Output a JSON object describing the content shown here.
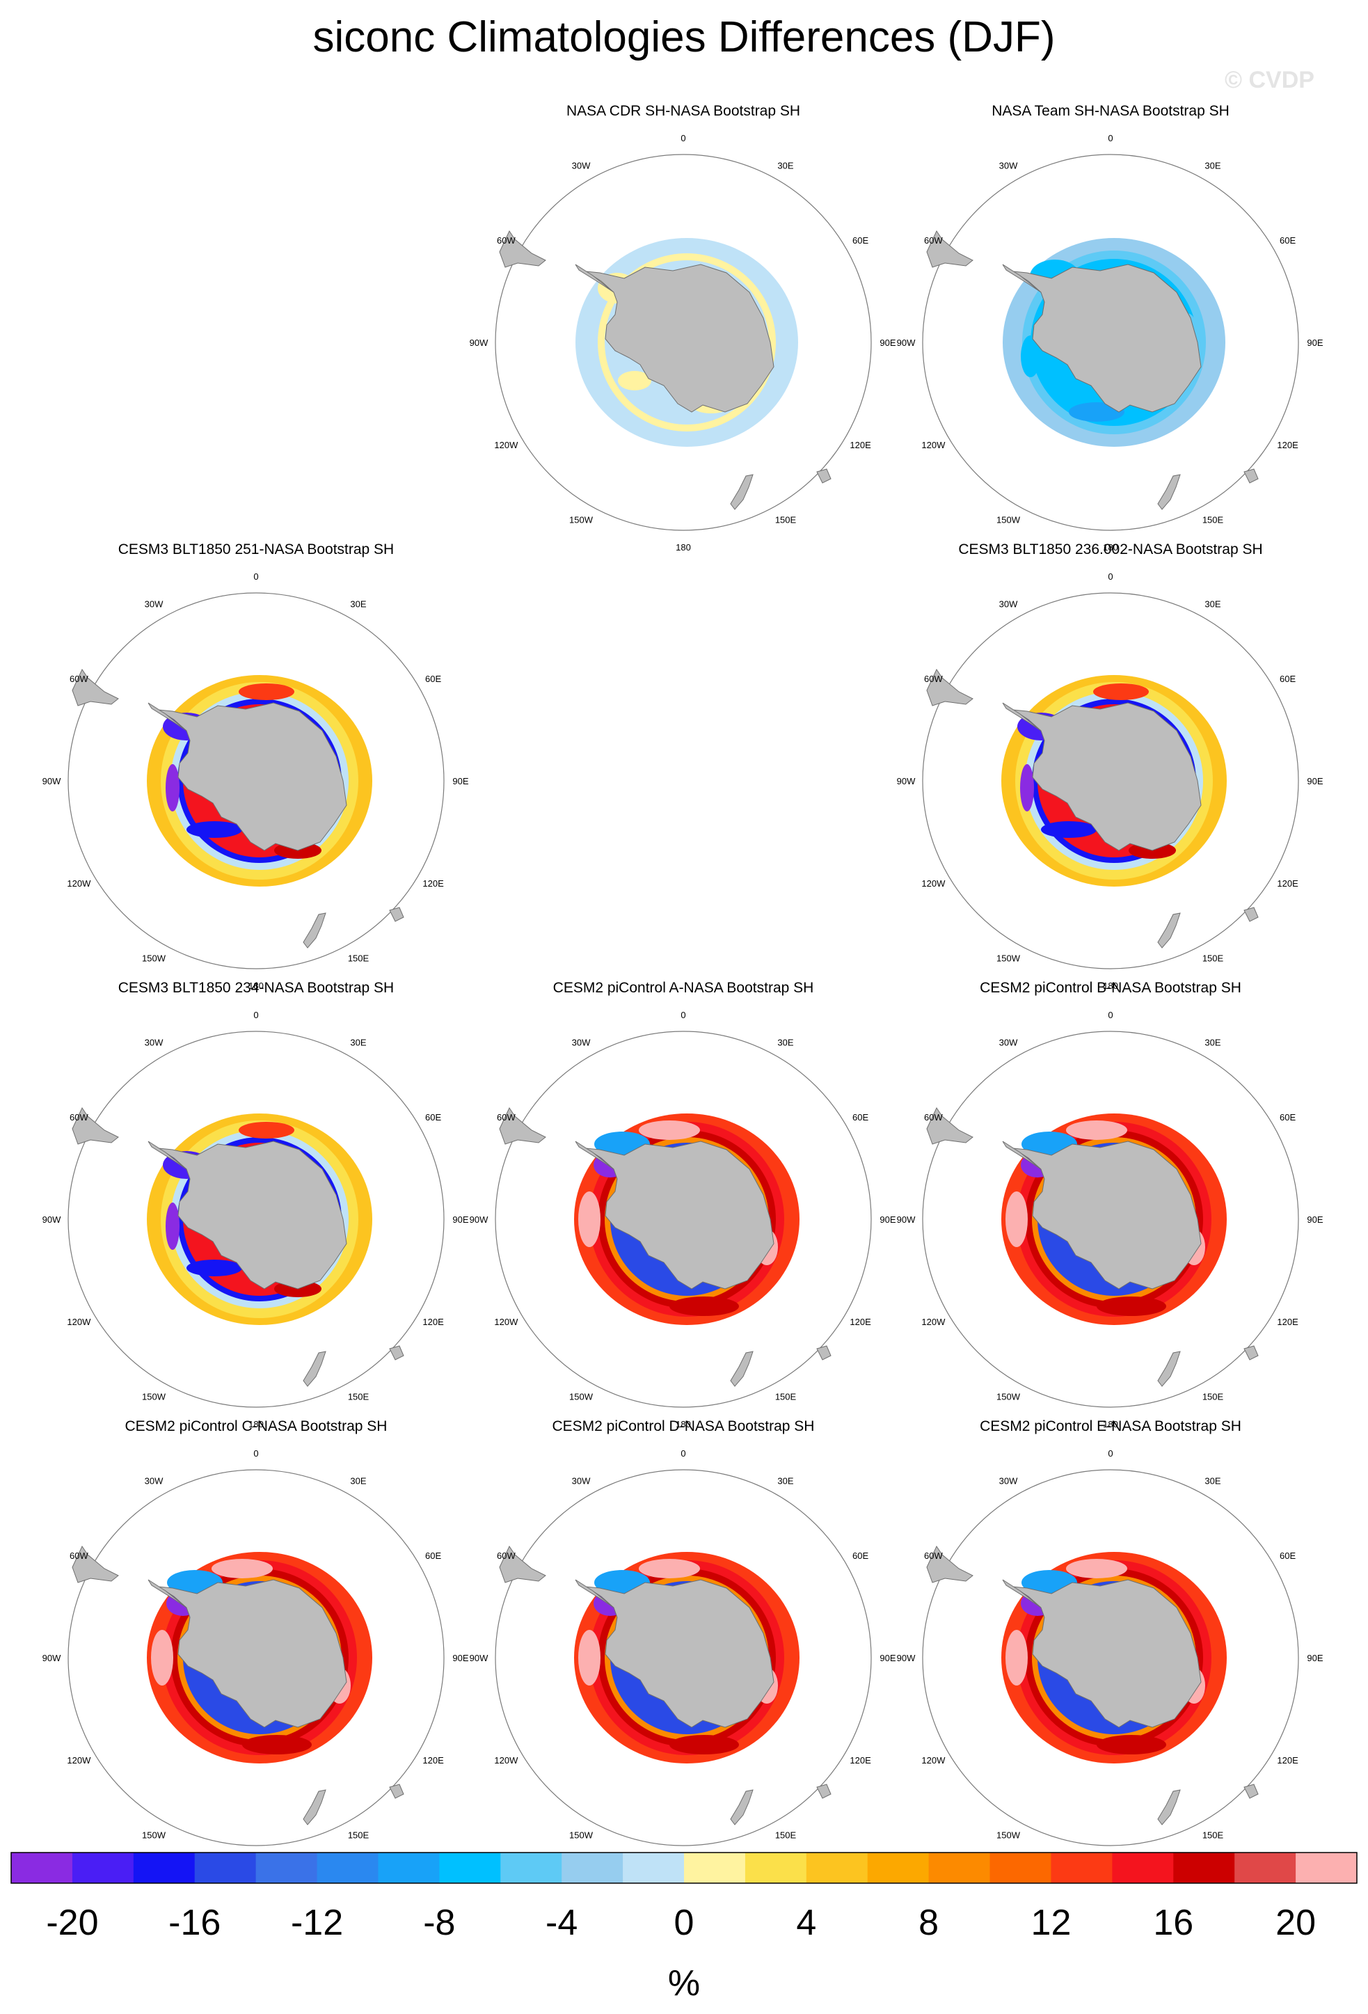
{
  "figure": {
    "title": "siconc Climatologies Differences (DJF)",
    "watermark": "© CVDP"
  },
  "map_labels": [
    "0",
    "30E",
    "60E",
    "90E",
    "120E",
    "150E",
    "180",
    "150W",
    "120W",
    "90W",
    "60W",
    "30W"
  ],
  "chart_data": {
    "type": "heatmap",
    "projection": "south-polar-stereographic",
    "panels": [
      {
        "title": "NASA CDR SH-NASA Bootstrap SH",
        "pattern": "cdr"
      },
      {
        "title": "NASA Team SH-NASA Bootstrap SH",
        "pattern": "team"
      },
      {
        "title": "CESM3 BLT1850 251-NASA Bootstrap SH",
        "pattern": "cesm3"
      },
      {
        "title": "CESM3 BLT1850 236.002-NASA Bootstrap SH",
        "pattern": "cesm3"
      },
      {
        "title": "CESM3 BLT1850 234-NASA Bootstrap SH",
        "pattern": "cesm3"
      },
      {
        "title": "CESM2 piControl A-NASA Bootstrap SH",
        "pattern": "cesm2"
      },
      {
        "title": "CESM2 piControl B-NASA Bootstrap SH",
        "pattern": "cesm2"
      },
      {
        "title": "CESM2 piControl C-NASA Bootstrap SH",
        "pattern": "cesm2"
      },
      {
        "title": "CESM2 piControl D-NASA Bootstrap SH",
        "pattern": "cesm2"
      },
      {
        "title": "CESM2 piControl E-NASA Bootstrap SH",
        "pattern": "cesm2"
      }
    ],
    "colorbar": {
      "levels": [
        -22,
        -20,
        -18,
        -16,
        -14,
        -12,
        -10,
        -8,
        -6,
        -4,
        -2,
        0,
        2,
        4,
        6,
        8,
        10,
        12,
        14,
        16,
        18,
        20,
        22
      ],
      "colors": [
        "#8a2be2",
        "#4a1ef5",
        "#1414f5",
        "#2a4ae6",
        "#3a72e8",
        "#2a88f0",
        "#18a2f8",
        "#00c0ff",
        "#5ecaf5",
        "#96cdef",
        "#bfe2f7",
        "#fff3a0",
        "#fbe04a",
        "#fcc420",
        "#fca800",
        "#fc8a00",
        "#fc6800",
        "#fc3a14",
        "#f4141e",
        "#cc0000",
        "#e04848",
        "#fcb0b0"
      ],
      "tick_labels": [
        "-20",
        "-16",
        "-12",
        "-8",
        "-4",
        "0",
        "4",
        "8",
        "12",
        "16",
        "20"
      ],
      "unit": "%"
    }
  }
}
